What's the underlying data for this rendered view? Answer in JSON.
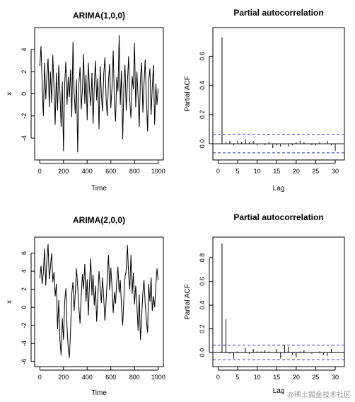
{
  "watermark": "@稀土掘金技术社区",
  "colors": {
    "line": "#000000",
    "ci": "#3333cc",
    "frame": "#000000"
  },
  "chart_data": [
    {
      "type": "line",
      "title": "ARIMA(1,0,0)",
      "xlabel": "Time",
      "ylabel": "x",
      "xlim": [
        0,
        1000
      ],
      "ylim": [
        -5.5,
        5.5
      ],
      "xticks": [
        "0",
        "200",
        "400",
        "600",
        "800",
        "1000"
      ],
      "yticks": [
        "-4",
        "-2",
        "0",
        "2",
        "4"
      ],
      "series": [
        {
          "x": [
            0,
            10,
            20,
            30,
            40,
            50,
            60,
            70,
            80,
            90,
            100,
            110,
            120,
            130,
            140,
            150,
            160,
            170,
            180,
            190,
            200,
            210,
            220,
            230,
            240,
            250,
            260,
            270,
            280,
            290,
            300,
            310,
            320,
            330,
            340,
            350,
            360,
            370,
            380,
            390,
            400,
            410,
            420,
            430,
            440,
            450,
            460,
            470,
            480,
            490,
            500,
            510,
            520,
            530,
            540,
            550,
            560,
            570,
            580,
            590,
            600,
            610,
            620,
            630,
            640,
            650,
            660,
            670,
            680,
            690,
            700,
            710,
            720,
            730,
            740,
            750,
            760,
            770,
            780,
            790,
            800,
            810,
            820,
            830,
            840,
            850,
            860,
            870,
            880,
            890,
            900,
            910,
            920,
            930,
            940,
            950,
            960,
            970,
            980,
            990,
            1000
          ],
          "values": [
            2.5,
            4.3,
            1.0,
            -2.0,
            2.8,
            -0.5,
            1.6,
            3.2,
            -1.2,
            2.0,
            -0.8,
            3.5,
            0.4,
            -2.8,
            1.9,
            -1.5,
            2.6,
            0.2,
            -3.0,
            1.1,
            -5.2,
            0.8,
            2.9,
            -1.0,
            1.5,
            -0.3,
            2.2,
            -2.1,
            4.7,
            0.1,
            -1.8,
            1.3,
            -5.3,
            0.9,
            2.4,
            -1.4,
            0.5,
            3.6,
            -0.9,
            1.7,
            -2.4,
            2.8,
            0.3,
            -1.1,
            1.9,
            -2.7,
            0.7,
            3.0,
            -0.6,
            1.4,
            -3.2,
            2.5,
            0.0,
            -1.6,
            1.8,
            3.3,
            -0.4,
            -2.0,
            1.2,
            2.7,
            -1.3,
            0.6,
            3.9,
            -0.8,
            -2.5,
            1.5,
            0.2,
            5.3,
            -1.0,
            2.1,
            -4.1,
            0.9,
            2.6,
            -1.5,
            1.0,
            3.4,
            -0.7,
            -2.2,
            1.6,
            0.4,
            4.6,
            -1.2,
            2.0,
            -0.3,
            -3.0,
            1.4,
            2.8,
            -1.7,
            0.8,
            3.1,
            -0.5,
            -3.4,
            1.2,
            2.3,
            -1.9,
            0.5,
            2.6,
            -2.8,
            0.9,
            -1.0,
            0.5
          ]
        }
      ]
    },
    {
      "type": "bar",
      "title": "Partial autocorrelation",
      "xlabel": "Lag",
      "ylabel": "Partial ACF",
      "xlim": [
        0,
        31
      ],
      "ylim": [
        -0.075,
        0.76
      ],
      "xticks": [
        "0",
        "5",
        "10",
        "15",
        "20",
        "25",
        "30"
      ],
      "yticks": [
        "0.0",
        "0.2",
        "0.4",
        "0.6"
      ],
      "ci": 0.062,
      "lags": [
        1,
        2,
        3,
        4,
        5,
        6,
        7,
        8,
        9,
        10,
        11,
        12,
        13,
        14,
        15,
        16,
        17,
        18,
        19,
        20,
        21,
        22,
        23,
        24,
        25,
        26,
        27,
        28,
        29,
        30
      ],
      "values": [
        0.73,
        0.01,
        0.02,
        -0.01,
        0.02,
        0.01,
        0.03,
        0.01,
        0.02,
        -0.01,
        0.0,
        -0.01,
        0.01,
        -0.03,
        -0.01,
        -0.02,
        0.0,
        -0.02,
        -0.01,
        0.01,
        0.02,
        0.01,
        0.0,
        -0.01,
        -0.01,
        0.01,
        0.0,
        0.02,
        -0.01,
        -0.05
      ]
    },
    {
      "type": "line",
      "title": "ARIMA(2,0,0)",
      "xlabel": "Time",
      "ylabel": "x",
      "xlim": [
        0,
        1000
      ],
      "ylim": [
        -6.0,
        7.2
      ],
      "xticks": [
        "0",
        "200",
        "400",
        "600",
        "800",
        "1000"
      ],
      "yticks": [
        "-6",
        "-4",
        "-2",
        "0",
        "2",
        "4",
        "6"
      ],
      "series": [
        {
          "x": [
            0,
            10,
            20,
            30,
            40,
            50,
            60,
            70,
            80,
            90,
            100,
            110,
            120,
            130,
            140,
            150,
            160,
            170,
            180,
            190,
            200,
            210,
            220,
            230,
            240,
            250,
            260,
            270,
            280,
            290,
            300,
            310,
            320,
            330,
            340,
            350,
            360,
            370,
            380,
            390,
            400,
            410,
            420,
            430,
            440,
            450,
            460,
            470,
            480,
            490,
            500,
            510,
            520,
            530,
            540,
            550,
            560,
            570,
            580,
            590,
            600,
            610,
            620,
            630,
            640,
            650,
            660,
            670,
            680,
            690,
            700,
            710,
            720,
            730,
            740,
            750,
            760,
            770,
            780,
            790,
            800,
            810,
            820,
            830,
            840,
            850,
            860,
            870,
            880,
            890,
            900,
            910,
            920,
            930,
            940,
            950,
            960,
            970,
            980,
            990,
            1000
          ],
          "values": [
            3.2,
            4.6,
            2.6,
            3.8,
            6.5,
            2.4,
            5.2,
            7.0,
            3.1,
            4.4,
            6.0,
            2.8,
            3.9,
            1.2,
            2.6,
            -2.4,
            0.8,
            -3.6,
            -5.3,
            -1.2,
            -3.6,
            0.5,
            2.1,
            -2.2,
            -4.6,
            -5.6,
            -2.6,
            1.5,
            2.8,
            -0.4,
            1.6,
            4.3,
            2.2,
            0.1,
            -1.8,
            1.4,
            3.7,
            2.0,
            4.8,
            0.6,
            3.1,
            -0.9,
            2.7,
            5.4,
            1.3,
            3.6,
            0.2,
            2.4,
            -1.6,
            1.1,
            4.0,
            2.3,
            0.5,
            3.3,
            1.0,
            -1.5,
            0.6,
            3.2,
            5.8,
            1.9,
            4.4,
            2.2,
            -0.6,
            1.7,
            0.4,
            2.9,
            4.5,
            1.6,
            3.0,
            0.1,
            -2.0,
            1.0,
            3.4,
            4.1,
            6.9,
            3.5,
            2.0,
            5.8,
            1.5,
            3.8,
            0.3,
            2.4,
            0.2,
            -2.6,
            1.4,
            -3.6,
            -1.1,
            1.6,
            3.0,
            0.4,
            -1.5,
            -2.8,
            2.6,
            0.6,
            3.3,
            -0.4,
            1.2,
            0.0,
            2.4,
            4.3,
            3.0
          ]
        }
      ]
    },
    {
      "type": "bar",
      "title": "Partial autocorrelation",
      "xlabel": "Lag",
      "ylabel": "Partial ACF",
      "xlim": [
        0,
        31
      ],
      "ylim": [
        -0.075,
        0.93
      ],
      "xticks": [
        "0",
        "5",
        "10",
        "15",
        "20",
        "25",
        "30"
      ],
      "yticks": [
        "0.0",
        "0.2",
        "0.4",
        "0.6",
        "0.8"
      ],
      "ci": 0.062,
      "lags": [
        1,
        2,
        3,
        4,
        5,
        6,
        7,
        8,
        9,
        10,
        11,
        12,
        13,
        14,
        15,
        16,
        17,
        18,
        19,
        20,
        21,
        22,
        23,
        24,
        25,
        26,
        27,
        28,
        29,
        30
      ],
      "values": [
        0.92,
        0.28,
        -0.01,
        -0.05,
        0.01,
        0.0,
        0.04,
        -0.01,
        0.03,
        0.01,
        0.01,
        0.02,
        0.01,
        0.0,
        0.03,
        -0.05,
        0.06,
        0.05,
        -0.02,
        -0.04,
        0.01,
        0.02,
        0.0,
        -0.01,
        0.0,
        0.01,
        -0.02,
        -0.03,
        0.03,
        0.0
      ]
    }
  ]
}
